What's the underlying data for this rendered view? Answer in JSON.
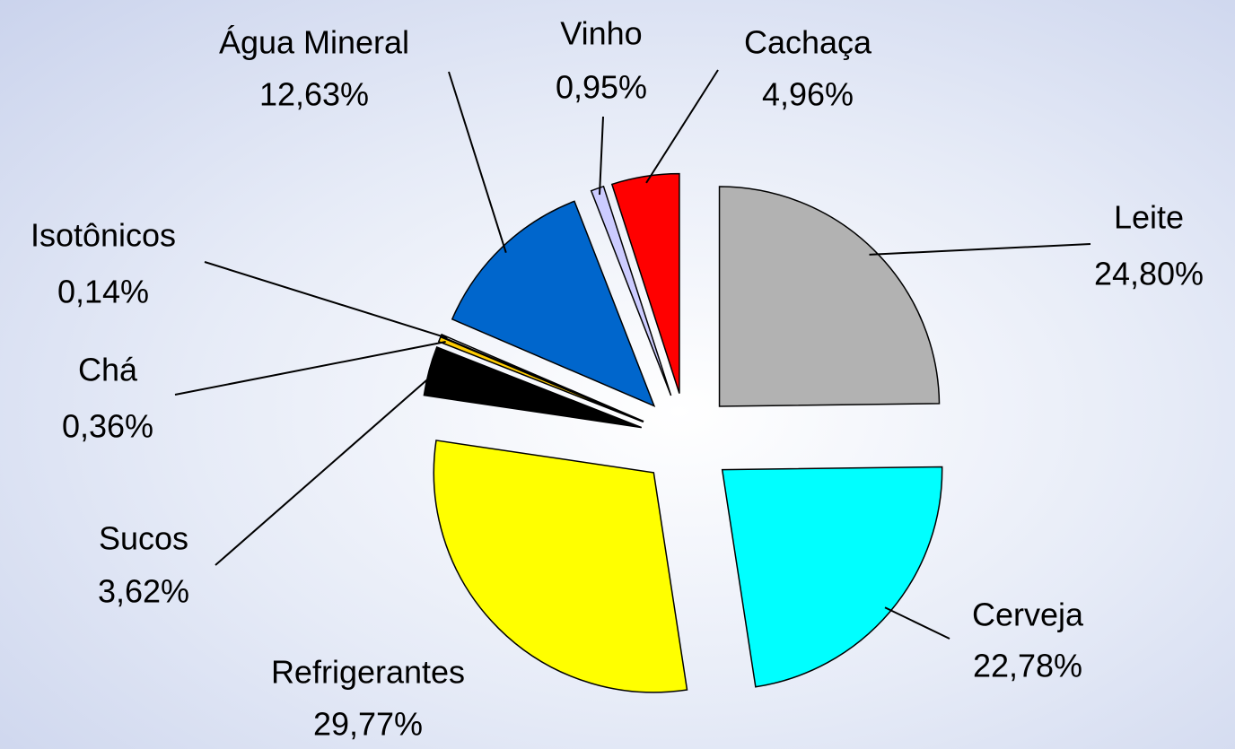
{
  "chart_data": {
    "type": "pie",
    "categories": [
      "Leite",
      "Cerveja",
      "Refrigerantes",
      "Sucos",
      "Chá",
      "Isotônicos",
      "Água Mineral",
      "Vinho",
      "Cachaça"
    ],
    "values": [
      24.8,
      22.78,
      29.77,
      3.62,
      0.36,
      0.14,
      12.63,
      0.95,
      4.96
    ],
    "value_labels": [
      "24,80%",
      "22,78%",
      "29,77%",
      "3,62%",
      "0,36%",
      "0,14%",
      "12,63%",
      "0,95%",
      "4,96%"
    ],
    "colors": [
      "#b2b2b2",
      "#00ffff",
      "#ffff00",
      "#000000",
      "#ffcc00",
      "#ffffff",
      "#0066cc",
      "#ccccff",
      "#ff0000"
    ]
  }
}
